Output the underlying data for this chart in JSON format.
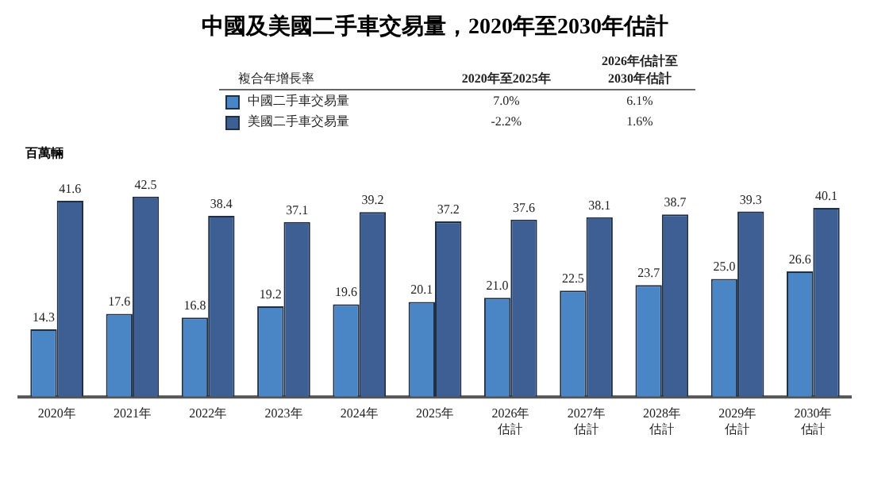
{
  "chart_data": {
    "type": "bar",
    "title": "中國及美國二手車交易量，2020年至2030年估計",
    "ylabel": "百萬輛",
    "categories": [
      "2020年",
      "2021年",
      "2022年",
      "2023年",
      "2024年",
      "2025年",
      "2026年估計",
      "2027年估計",
      "2028年估計",
      "2029年估計",
      "2030年估計"
    ],
    "series": [
      {
        "name": "中國二手車交易量",
        "color": "#4a86c5",
        "values": [
          14.3,
          17.6,
          16.8,
          19.2,
          19.6,
          20.1,
          21.0,
          22.5,
          23.7,
          25.0,
          26.6
        ],
        "value_labels": [
          "14.3",
          "17.6",
          "16.8",
          "19.2",
          "19.6",
          "20.1",
          "21.0",
          "22.5",
          "23.7",
          "25.0",
          "26.6"
        ]
      },
      {
        "name": "美國二手車交易量",
        "color": "#3d5f94",
        "values": [
          41.6,
          42.5,
          38.4,
          37.1,
          39.2,
          37.2,
          37.6,
          38.1,
          38.7,
          39.3,
          40.1
        ],
        "value_labels": [
          "41.6",
          "42.5",
          "38.4",
          "37.1",
          "39.2",
          "37.2",
          "37.6",
          "38.1",
          "38.7",
          "39.3",
          "40.1"
        ]
      }
    ],
    "legend": "top",
    "grid": false,
    "annotations": [
      "複合年增長率",
      "2020年至2025年",
      "2026年估計至2030年估計",
      "7.0%",
      "-2.2%",
      "6.1%",
      "1.6%"
    ]
  }
}
